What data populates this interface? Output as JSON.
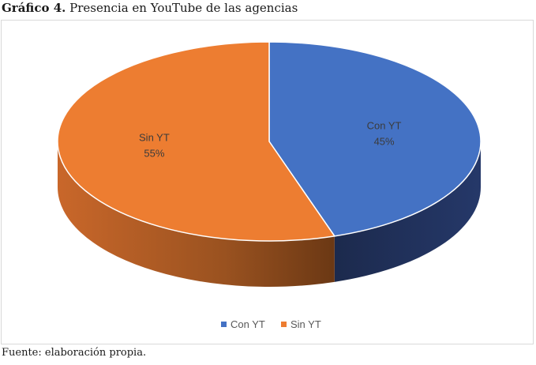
{
  "caption": {
    "lead": "Gráfico 4.",
    "text": "Presencia en YouTube de las agencias"
  },
  "source_note": "Fuente: elaboración propia.",
  "chart_data": {
    "type": "pie",
    "style": "3d",
    "slices": [
      {
        "name": "Con YT",
        "value": 45,
        "label": "45%",
        "color": "#4472c4",
        "side_color": "#1f2f57"
      },
      {
        "name": "Sin YT",
        "value": 55,
        "label": "55%",
        "color": "#ed7d31",
        "side_color": "#a8581f"
      }
    ],
    "legend_position": "bottom",
    "legend": [
      "Con YT",
      "Sin YT"
    ]
  }
}
